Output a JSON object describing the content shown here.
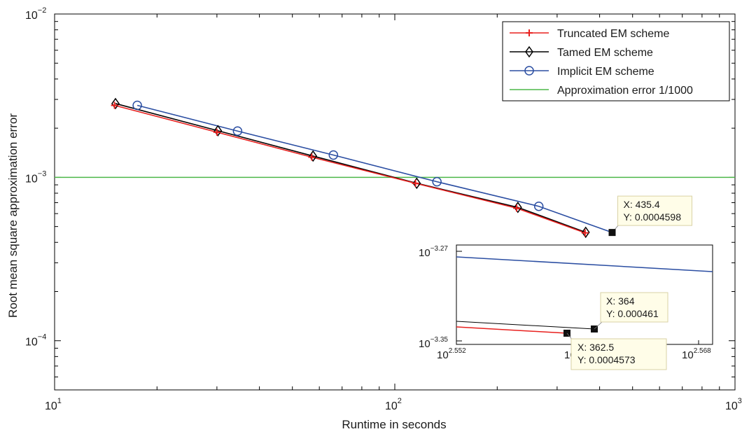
{
  "chart_data": {
    "type": "line",
    "xlabel": "Runtime in seconds",
    "ylabel": "Root mean square approximation error",
    "xscale": "log",
    "yscale": "log",
    "xlim": [
      10,
      1000
    ],
    "ylim": [
      5e-05,
      0.01
    ],
    "x_ticks": [
      {
        "value": 10,
        "base": "10",
        "exp": "1"
      },
      {
        "value": 100,
        "base": "10",
        "exp": "2"
      },
      {
        "value": 1000,
        "base": "10",
        "exp": "3"
      }
    ],
    "y_ticks": [
      {
        "value": 0.0001,
        "base": "10",
        "exp": "−4"
      },
      {
        "value": 0.001,
        "base": "10",
        "exp": "−3"
      },
      {
        "value": 0.01,
        "base": "10",
        "exp": "−2"
      }
    ],
    "grid": false,
    "legend_position": "top-right",
    "series": [
      {
        "name": "Truncated EM scheme",
        "color": "#e8201e",
        "marker": "plus",
        "x": [
          15,
          30,
          57,
          115,
          228,
          362.5
        ],
        "y": [
          0.00276,
          0.00189,
          0.00133,
          0.00092,
          0.000648,
          0.0004573
        ]
      },
      {
        "name": "Tamed EM scheme",
        "color": "#000000",
        "marker": "diamond",
        "x": [
          15.1,
          30.2,
          57.5,
          116,
          230,
          364
        ],
        "y": [
          0.00283,
          0.00193,
          0.00135,
          0.00092,
          0.000655,
          0.000461
        ]
      },
      {
        "name": "Implicit EM scheme",
        "color": "#2b4ea2",
        "marker": "circle",
        "x": [
          17.5,
          34.5,
          66,
          133,
          265,
          435.4
        ],
        "y": [
          0.00276,
          0.00192,
          0.00137,
          0.00094,
          0.000665,
          0.0004598
        ]
      },
      {
        "name": "Approximation error 1/1000",
        "color": "#4db848",
        "marker": "none",
        "x": [
          10,
          1000
        ],
        "y": [
          0.001,
          0.001
        ]
      }
    ],
    "datatips": [
      {
        "x": 435.4,
        "y": 0.0004598,
        "line1": "X: 435.4",
        "line2": "Y: 0.0004598"
      }
    ],
    "inset": {
      "x_ticks": [
        {
          "base": "10",
          "exp": "2.552"
        },
        {
          "base": "10",
          "exp": "2.568"
        }
      ],
      "x_center_label": {
        "base": "10",
        "exp": ""
      },
      "y_ticks": [
        {
          "base": "10",
          "exp": "−3.27"
        },
        {
          "base": "10",
          "exp": "−3.35"
        }
      ],
      "datatips": [
        {
          "line1": "X: 364",
          "line2": "Y: 0.000461"
        },
        {
          "line1": "X: 362.5",
          "line2": "Y: 0.0004573"
        }
      ]
    }
  }
}
